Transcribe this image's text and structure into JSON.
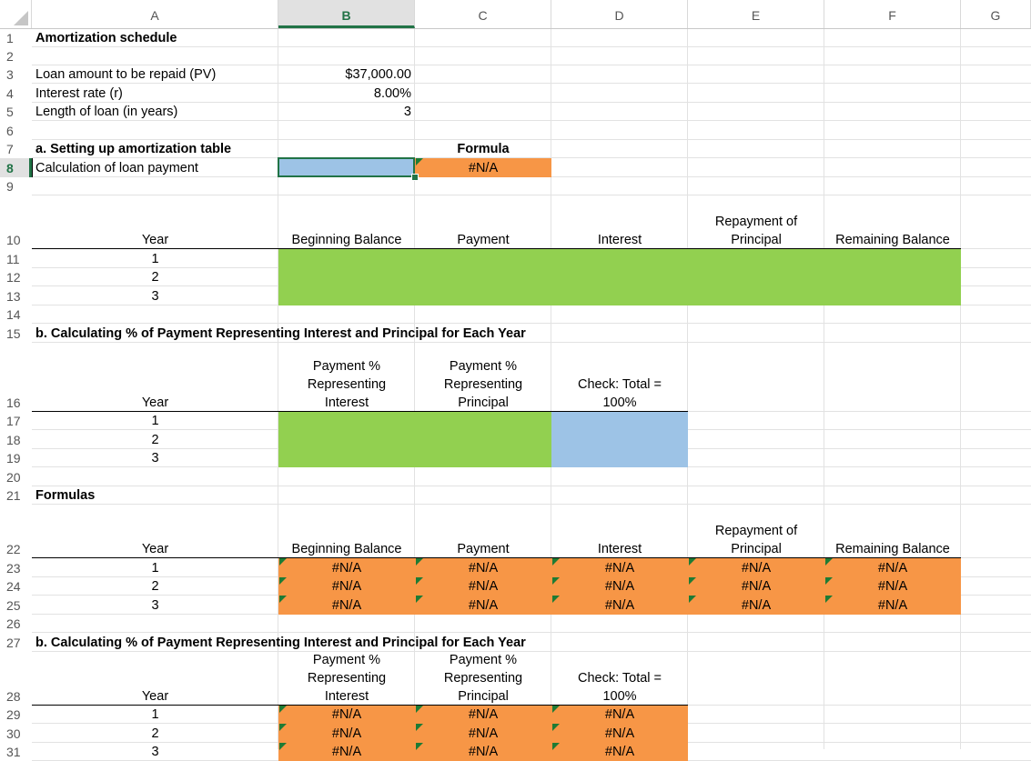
{
  "colors": {
    "blue": "#9dc3e6",
    "green": "#92d050",
    "orange": "#f79646",
    "accent": "#217346"
  },
  "columns": [
    "A",
    "B",
    "C",
    "D",
    "E",
    "F",
    "G"
  ],
  "rows": [
    "1",
    "2",
    "3",
    "4",
    "5",
    "6",
    "7",
    "8",
    "9",
    "10",
    "11",
    "12",
    "13",
    "14",
    "15",
    "16",
    "17",
    "18",
    "19",
    "20",
    "21",
    "22",
    "23",
    "24",
    "25",
    "26",
    "27",
    "28",
    "29",
    "30",
    "31"
  ],
  "title": "Amortization schedule",
  "inputs": {
    "pv_label": "Loan amount to be repaid (PV)",
    "pv_value": "$37,000.00",
    "rate_label": "Interest rate  (r)",
    "rate_value": "8.00%",
    "length_label": "Length of loan (in years)",
    "length_value": "3"
  },
  "section_a": {
    "heading": "a. Setting up amortization table",
    "formula_label": "Formula",
    "calc_label": "Calculation of loan payment",
    "calc_formula": "#N/A"
  },
  "table1": {
    "year": "Year",
    "beginning": "Beginning Balance",
    "payment": "Payment",
    "interest": "Interest",
    "repay_1": "Repayment of",
    "repay_2": "Principal",
    "remaining": "Remaining Balance",
    "years": [
      "1",
      "2",
      "3"
    ]
  },
  "section_b": {
    "heading": "b. Calculating % of Payment Representing Interest and Principal for Each Year",
    "int_1": "Payment %",
    "int_2": "Representing",
    "int_3": "Interest",
    "pri_1": "Payment %",
    "pri_2": "Representing",
    "pri_3": "Principal",
    "chk_1": "Check:  Total =",
    "chk_2": "100%",
    "year": "Year",
    "years": [
      "1",
      "2",
      "3"
    ]
  },
  "formulas": {
    "heading": "Formulas",
    "year": "Year",
    "beginning": "Beginning Balance",
    "payment": "Payment",
    "interest": "Interest",
    "repay_1": "Repayment of",
    "repay_2": "Principal",
    "remaining": "Remaining Balance",
    "years": [
      "1",
      "2",
      "3"
    ],
    "na": "#N/A"
  },
  "formulas_b": {
    "heading": "b. Calculating % of Payment Representing Interest and Principal for Each Year",
    "int_1": "Payment %",
    "int_2": "Representing",
    "int_3": "Interest",
    "pri_1": "Payment %",
    "pri_2": "Representing",
    "pri_3": "Principal",
    "chk_1": "Check:  Total =",
    "chk_2": "100%",
    "year": "Year",
    "years": [
      "1",
      "2",
      "3"
    ],
    "na": "#N/A"
  }
}
